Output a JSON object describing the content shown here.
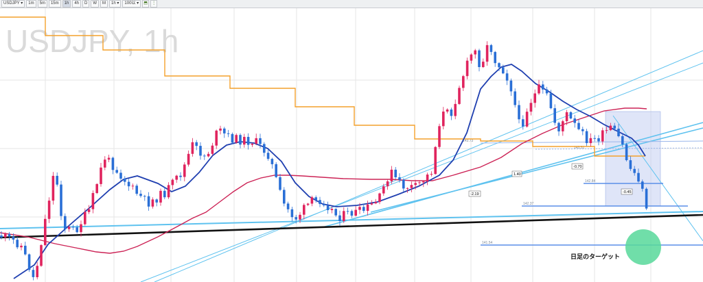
{
  "toolbar": {
    "symbol": "USDJPY",
    "timeframes": [
      "1m",
      "5m",
      "15m",
      "1h",
      "4h",
      "D",
      "W",
      "M"
    ],
    "active_timeframe": "1h",
    "interval": "1h",
    "bars": "100以"
  },
  "chart_data": {
    "type": "candlestick",
    "title": "USDJPY, 1h",
    "grid": true,
    "colors": {
      "up": "#e0245e",
      "down": "#2a6fd6",
      "ma_fast": "#1f3fb0",
      "ma_slow": "#cc2255",
      "stop_line": "#f4a12b",
      "trendline": "#5ec2ef",
      "support": "#111111",
      "level_line": "#5a8ee8",
      "zone": "#b7c6ef",
      "target": "#57d89a"
    },
    "level_labels": [
      "143.73",
      "143.51",
      "142.84",
      "142.37",
      "141.54"
    ],
    "callouts": [
      "-0.70",
      "1.40",
      "-2.19",
      "-0.45"
    ],
    "annotation": "日足のターゲット"
  }
}
